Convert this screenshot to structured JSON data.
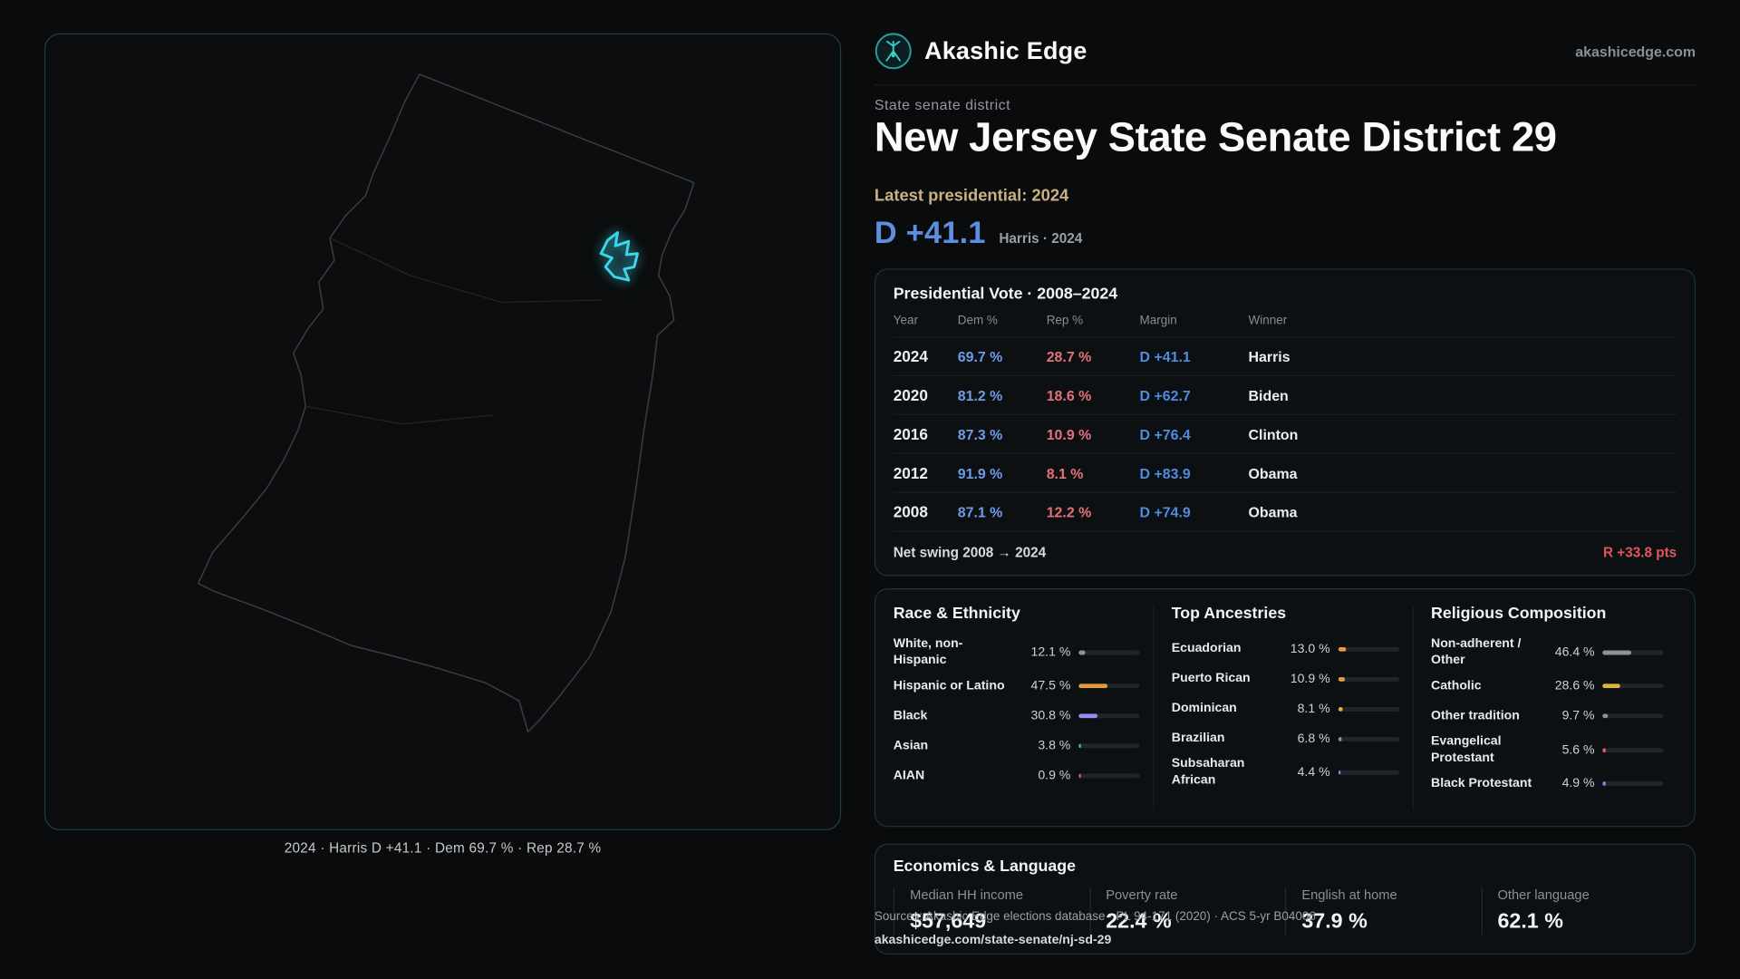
{
  "colors": {
    "dem_blue": "#5b8fe0",
    "rep_red": "#e0646e",
    "accent_cyan": "#3bd6ea",
    "accent_tan": "#ccb184"
  },
  "brand": {
    "name": "Akashic Edge",
    "domain": "akashicedge.com"
  },
  "page": {
    "kicker": "State senate district",
    "title": "New Jersey State Senate District 29",
    "latest_label": "Latest presidential: 2024",
    "headline_margin": "D +41.1",
    "headline_note": "Harris · 2024"
  },
  "map": {
    "caption": "2024 · Harris D +41.1 · Dem 69.7 % · Rep 28.7 %"
  },
  "presidential_table": {
    "title": "Presidential Vote · 2008–2024",
    "columns": [
      "Year",
      "Dem %",
      "Rep %",
      "Margin",
      "Winner"
    ],
    "rows": [
      {
        "year": "2024",
        "dem": "69.7 %",
        "rep": "28.7 %",
        "margin": "D +41.1",
        "winner": "Harris"
      },
      {
        "year": "2020",
        "dem": "81.2 %",
        "rep": "18.6 %",
        "margin": "D +62.7",
        "winner": "Biden"
      },
      {
        "year": "2016",
        "dem": "87.3 %",
        "rep": "10.9 %",
        "margin": "D +76.4",
        "winner": "Clinton"
      },
      {
        "year": "2012",
        "dem": "91.9 %",
        "rep": "8.1 %",
        "margin": "D +83.9",
        "winner": "Obama"
      },
      {
        "year": "2008",
        "dem": "87.1 %",
        "rep": "12.2 %",
        "margin": "D +74.9",
        "winner": "Obama"
      }
    ],
    "footer_label": "Net swing 2008 → 2024",
    "footer_value": "R +33.8 pts"
  },
  "demographics": {
    "race": {
      "title": "Race & Ethnicity",
      "rows": [
        {
          "label": "White, non-Hispanic",
          "value": "12.1 %",
          "pct": 12.1,
          "color": "#8b9298"
        },
        {
          "label": "Hispanic or Latino",
          "value": "47.5 %",
          "pct": 47.5,
          "color": "#e39b3b"
        },
        {
          "label": "Black",
          "value": "30.8 %",
          "pct": 30.8,
          "color": "#9b8cf2"
        },
        {
          "label": "Asian",
          "value": "3.8 %",
          "pct": 3.8,
          "color": "#39c9a0"
        },
        {
          "label": "AIAN",
          "value": "0.9 %",
          "pct": 0.9,
          "color": "#d95f56"
        }
      ]
    },
    "ancestries": {
      "title": "Top Ancestries",
      "rows": [
        {
          "label": "Ecuadorian",
          "value": "13.0 %",
          "pct": 13.0,
          "color": "#e39b3b"
        },
        {
          "label": "Puerto Rican",
          "value": "10.9 %",
          "pct": 10.9,
          "color": "#e39b3b"
        },
        {
          "label": "Dominican",
          "value": "8.1 %",
          "pct": 8.1,
          "color": "#e0b53c"
        },
        {
          "label": "Brazilian",
          "value": "6.8 %",
          "pct": 6.8,
          "color": "#8b9298"
        },
        {
          "label": "Subsaharan African",
          "value": "4.4 %",
          "pct": 4.4,
          "color": "#8f7ce8"
        }
      ]
    },
    "religion": {
      "title": "Religious Composition",
      "rows": [
        {
          "label": "Non-adherent / Other",
          "value": "46.4 %",
          "pct": 46.4,
          "color": "#8b9298"
        },
        {
          "label": "Catholic",
          "value": "28.6 %",
          "pct": 28.6,
          "color": "#dfb43a"
        },
        {
          "label": "Other tradition",
          "value": "9.7 %",
          "pct": 9.7,
          "color": "#8b9298"
        },
        {
          "label": "Evangelical Protestant",
          "value": "5.6 %",
          "pct": 5.6,
          "color": "#d95f63"
        },
        {
          "label": "Black Protestant",
          "value": "4.9 %",
          "pct": 4.9,
          "color": "#8f7ce8"
        }
      ]
    }
  },
  "economics": {
    "title": "Economics & Language",
    "stats": [
      {
        "label": "Median HH income",
        "value": "$57,649"
      },
      {
        "label": "Poverty rate",
        "value": "22.4 %"
      },
      {
        "label": "English at home",
        "value": "37.9 %"
      },
      {
        "label": "Other language",
        "value": "62.1 %"
      }
    ]
  },
  "footer": {
    "line1": "Sources: Akashic Edge elections database · PL 94-171 (2020) · ACS 5-yr B04006",
    "line2": "akashicedge.com/state-senate/nj-sd-29"
  }
}
